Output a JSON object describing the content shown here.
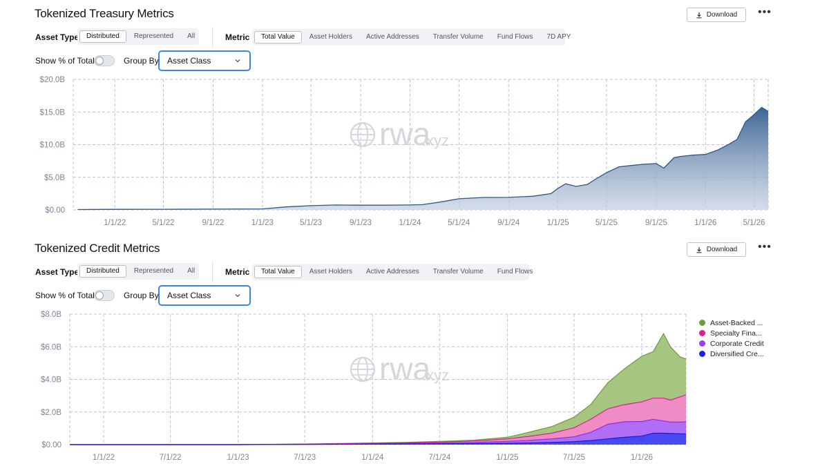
{
  "treasury": {
    "title": "Tokenized Treasury Metrics",
    "download_label": "Download",
    "more_icon": "more-icon",
    "asset_type": {
      "label": "Asset Type",
      "options": [
        "Distributed",
        "Represented",
        "All"
      ],
      "selected": "Distributed"
    },
    "metric": {
      "label": "Metric",
      "options": [
        "Total Value",
        "Asset Holders",
        "Active Addresses",
        "Transfer Volume",
        "Fund Flows",
        "7D APY"
      ],
      "selected": "Total Value"
    },
    "show_pct_label": "Show % of Total",
    "group_by": {
      "label": "Group By",
      "value": "Asset Class"
    }
  },
  "credit": {
    "title": "Tokenized Credit Metrics",
    "download_label": "Download",
    "more_icon": "more-icon",
    "asset_type": {
      "label": "Asset Type",
      "options": [
        "Distributed",
        "Represented",
        "All"
      ],
      "selected": "Distributed"
    },
    "metric": {
      "label": "Metric",
      "options": [
        "Total Value",
        "Asset Holders",
        "Active Addresses",
        "Transfer Volume",
        "Fund Flows"
      ],
      "selected": "Total Value"
    },
    "show_pct_label": "Show % of Total",
    "group_by": {
      "label": "Group By",
      "value": "Asset Class"
    }
  },
  "watermark": {
    "main": "rwa",
    "suffix": ".xyz",
    "icon": "globe-icon"
  },
  "colors": {
    "treasury_area": "#3d6594",
    "asset_backed": "#6e9b3a",
    "specialty_finance": "#d7218f",
    "corporate_credit": "#9b3df2",
    "diversified_credit": "#2020e0",
    "accent": "#3d86e6"
  },
  "chart_data": [
    {
      "type": "area",
      "title": "Tokenized Treasury Metrics",
      "y_ticks": [
        "$0.00",
        "$5.0B",
        "$10.0B",
        "$15.0B",
        "$20.0B"
      ],
      "x_ticks": [
        "1/1/22",
        "5/1/22",
        "9/1/22",
        "1/1/23",
        "5/1/23",
        "9/1/23",
        "1/1/24",
        "5/1/24",
        "9/1/24",
        "1/1/25",
        "5/1/25",
        "9/1/25",
        "1/1/26",
        "5/1/26"
      ],
      "ylim": [
        0,
        20
      ],
      "y_unit": "B USD",
      "grid": true,
      "series": [
        {
          "x": [
            "2021-10-01",
            "2022-01-01",
            "2022-05-01",
            "2022-09-01",
            "2023-01-01",
            "2023-03-01",
            "2023-05-01",
            "2023-07-01",
            "2023-09-01",
            "2023-11-01",
            "2024-01-01",
            "2024-02-01",
            "2024-03-15",
            "2024-05-01",
            "2024-07-01",
            "2024-09-01",
            "2024-11-01",
            "2024-12-15",
            "2025-01-01",
            "2025-01-20",
            "2025-02-15",
            "2025-03-15",
            "2025-04-01",
            "2025-05-01",
            "2025-06-01",
            "2025-07-01",
            "2025-08-01",
            "2025-09-01",
            "2025-09-20",
            "2025-10-15",
            "2025-11-01",
            "2025-12-01",
            "2026-01-01",
            "2026-02-01",
            "2026-03-01",
            "2026-03-20",
            "2026-04-10",
            "2026-05-01",
            "2026-05-20",
            "2026-06-05"
          ],
          "values": [
            0.05,
            0.08,
            0.1,
            0.12,
            0.15,
            0.45,
            0.65,
            0.75,
            0.72,
            0.72,
            0.75,
            0.8,
            1.2,
            1.7,
            1.9,
            1.92,
            2.1,
            2.5,
            3.3,
            4.0,
            3.6,
            3.9,
            4.6,
            5.7,
            6.6,
            6.8,
            7.0,
            7.1,
            6.4,
            8.0,
            8.2,
            8.4,
            8.5,
            9.2,
            10.1,
            10.8,
            13.5,
            14.6,
            15.7,
            15.1
          ]
        }
      ]
    },
    {
      "type": "area",
      "stacked": true,
      "title": "Tokenized Credit Metrics",
      "y_ticks": [
        "$0.00",
        "$2.0B",
        "$4.0B",
        "$6.0B",
        "$8.0B"
      ],
      "x_ticks": [
        "1/1/22",
        "7/1/22",
        "1/1/23",
        "7/1/23",
        "1/1/24",
        "7/1/24",
        "1/1/25",
        "7/1/25",
        "1/1/26"
      ],
      "ylim": [
        0,
        8
      ],
      "y_unit": "B USD",
      "grid": true,
      "legend_position": "top-right",
      "x": [
        "2021-10-01",
        "2022-01-01",
        "2022-07-01",
        "2023-01-01",
        "2023-07-01",
        "2024-01-01",
        "2024-04-01",
        "2024-07-01",
        "2024-10-01",
        "2025-01-01",
        "2025-03-01",
        "2025-05-01",
        "2025-07-01",
        "2025-08-15",
        "2025-10-01",
        "2025-11-15",
        "2026-01-01",
        "2026-02-01",
        "2026-03-01",
        "2026-03-20",
        "2026-04-15",
        "2026-05-01"
      ],
      "series": [
        {
          "name": "Diversified Cre...",
          "values": [
            0.0,
            0.0,
            0.0,
            0.0,
            0.01,
            0.03,
            0.04,
            0.05,
            0.06,
            0.08,
            0.1,
            0.13,
            0.18,
            0.25,
            0.35,
            0.45,
            0.52,
            0.7,
            0.7,
            0.68,
            0.66,
            0.65
          ]
        },
        {
          "name": "Corporate Credit",
          "values": [
            0.0,
            0.0,
            0.0,
            0.0,
            0.01,
            0.02,
            0.03,
            0.05,
            0.07,
            0.12,
            0.16,
            0.22,
            0.3,
            0.5,
            0.9,
            0.95,
            0.9,
            0.85,
            0.75,
            0.7,
            0.72,
            0.75
          ]
        },
        {
          "name": "Specialty Fina...",
          "values": [
            0.0,
            0.0,
            0.0,
            0.0,
            0.01,
            0.03,
            0.04,
            0.06,
            0.09,
            0.15,
            0.25,
            0.35,
            0.55,
            0.8,
            0.95,
            1.05,
            1.2,
            1.3,
            1.4,
            1.35,
            1.55,
            1.65
          ]
        },
        {
          "name": "Asset-Backed ...",
          "values": [
            0.0,
            0.0,
            0.0,
            0.0,
            0.01,
            0.02,
            0.03,
            0.04,
            0.05,
            0.1,
            0.25,
            0.4,
            0.65,
            0.9,
            1.6,
            2.2,
            2.8,
            2.85,
            3.95,
            3.25,
            2.45,
            2.2
          ]
        }
      ]
    }
  ]
}
